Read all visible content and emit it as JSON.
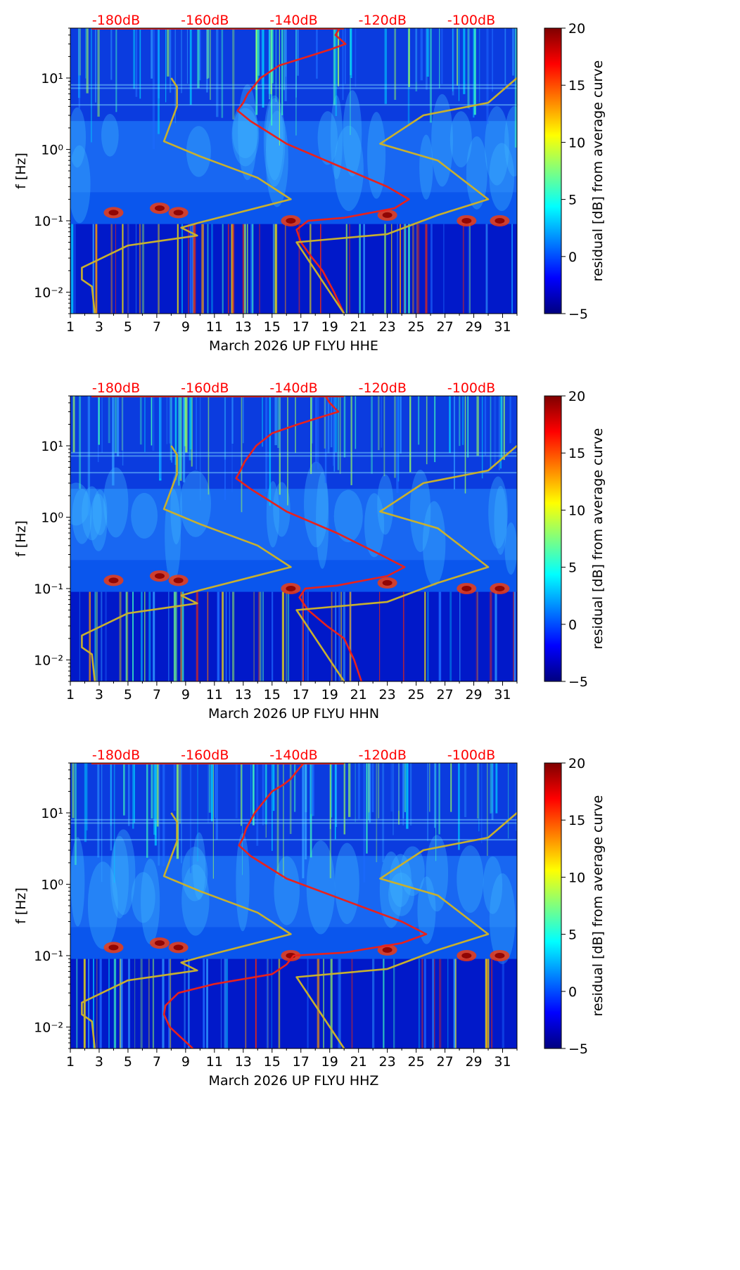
{
  "colors": {
    "red_curve": "#e8211c",
    "model_curve": "#c8b02e",
    "db_text": "#ff0000",
    "axis": "#000000",
    "jet_stops": [
      "#00007f",
      "#0000ff",
      "#007fff",
      "#00ffff",
      "#7fff7f",
      "#ffff00",
      "#ff7f00",
      "#ff0000",
      "#7f0000"
    ]
  },
  "chart_data": [
    {
      "type": "heatmap",
      "title": "",
      "xlabel": "March 2026 UP FLYU  HHE",
      "ylabel": "f [Hz]",
      "xlim": [
        1,
        32
      ],
      "ylim": [
        0.005,
        50
      ],
      "yscale": "log",
      "x_ticks": [
        "1",
        "3",
        "5",
        "7",
        "9",
        "11",
        "13",
        "15",
        "17",
        "19",
        "21",
        "23",
        "25",
        "27",
        "29",
        "31"
      ],
      "y_ticks": [
        "10⁻²",
        "10⁻¹",
        "10⁰",
        "10¹"
      ],
      "db_scale_labels": [
        "-180dB",
        "-160dB",
        "-140dB",
        "-120dB",
        "-100dB"
      ],
      "db_scale_values": [
        -180,
        -160,
        -140,
        -120,
        -100
      ],
      "colorbar": {
        "label": "residual [dB] from average curve",
        "range": [
          -5,
          20
        ],
        "ticks": [
          "−5",
          "0",
          "5",
          "10",
          "15",
          "20"
        ]
      },
      "series": [
        {
          "name": "average PSD (red)",
          "points": [
            [
              19.7,
              50
            ],
            [
              19.4,
              40
            ],
            [
              20.1,
              30
            ],
            [
              19.0,
              25
            ],
            [
              17.5,
              20
            ],
            [
              15.5,
              15
            ],
            [
              14.2,
              10
            ],
            [
              13.3,
              6
            ],
            [
              13.0,
              4.5
            ],
            [
              12.6,
              3.5
            ],
            [
              13.5,
              2.5
            ],
            [
              16.0,
              1.2
            ],
            [
              19.5,
              0.6
            ],
            [
              23.0,
              0.3
            ],
            [
              24.5,
              0.2
            ],
            [
              23.5,
              0.15
            ],
            [
              20.0,
              0.11
            ],
            [
              17.5,
              0.1
            ],
            [
              16.7,
              0.075
            ],
            [
              17.0,
              0.05
            ],
            [
              17.8,
              0.03
            ],
            [
              18.5,
              0.02
            ],
            [
              19.3,
              0.01
            ],
            [
              20.0,
              0.005
            ]
          ]
        },
        {
          "name": "low noise model",
          "points": [
            [
              8.0,
              10
            ],
            [
              8.4,
              7.5
            ],
            [
              8.4,
              4
            ],
            [
              7.5,
              1.3
            ],
            [
              10.0,
              0.8
            ],
            [
              14.0,
              0.4
            ],
            [
              16.3,
              0.2
            ],
            [
              10.0,
              0.095
            ],
            [
              8.7,
              0.08
            ],
            [
              9.8,
              0.062
            ],
            [
              5.0,
              0.045
            ],
            [
              1.8,
              0.022
            ],
            [
              1.8,
              0.015
            ],
            [
              2.5,
              0.012
            ],
            [
              2.7,
              0.005
            ]
          ]
        },
        {
          "name": "high noise model",
          "points": [
            [
              32.0,
              10
            ],
            [
              30.0,
              4.5
            ],
            [
              25.5,
              3.0
            ],
            [
              22.5,
              1.2
            ],
            [
              26.5,
              0.7
            ],
            [
              30.0,
              0.2
            ],
            [
              26.5,
              0.12
            ],
            [
              23.0,
              0.065
            ],
            [
              16.7,
              0.05
            ],
            [
              20.0,
              0.005
            ]
          ]
        }
      ]
    },
    {
      "type": "heatmap",
      "title": "",
      "xlabel": "March 2026 UP FLYU  HHN",
      "ylabel": "f [Hz]",
      "xlim": [
        1,
        32
      ],
      "ylim": [
        0.005,
        50
      ],
      "yscale": "log",
      "x_ticks": [
        "1",
        "3",
        "5",
        "7",
        "9",
        "11",
        "13",
        "15",
        "17",
        "19",
        "21",
        "23",
        "25",
        "27",
        "29",
        "31"
      ],
      "y_ticks": [
        "10⁻²",
        "10⁻¹",
        "10⁰",
        "10¹"
      ],
      "db_scale_labels": [
        "-180dB",
        "-160dB",
        "-140dB",
        "-120dB",
        "-100dB"
      ],
      "db_scale_values": [
        -180,
        -160,
        -140,
        -120,
        -100
      ],
      "colorbar": {
        "label": "residual [dB] from average curve",
        "range": [
          -5,
          20
        ],
        "ticks": [
          "−5",
          "0",
          "5",
          "10",
          "15",
          "20"
        ]
      },
      "series": [
        {
          "name": "average PSD (red)",
          "points": [
            [
              18.7,
              50
            ],
            [
              19.0,
              40
            ],
            [
              19.6,
              30
            ],
            [
              18.3,
              25
            ],
            [
              16.8,
              20
            ],
            [
              15.0,
              15
            ],
            [
              13.9,
              10
            ],
            [
              13.1,
              6
            ],
            [
              12.8,
              4.5
            ],
            [
              12.5,
              3.5
            ],
            [
              13.5,
              2.5
            ],
            [
              16.0,
              1.2
            ],
            [
              19.5,
              0.6
            ],
            [
              22.5,
              0.3
            ],
            [
              24.2,
              0.2
            ],
            [
              23.0,
              0.15
            ],
            [
              19.5,
              0.11
            ],
            [
              17.3,
              0.1
            ],
            [
              16.9,
              0.075
            ],
            [
              17.5,
              0.05
            ],
            [
              18.8,
              0.03
            ],
            [
              20.0,
              0.02
            ],
            [
              20.7,
              0.01
            ],
            [
              21.2,
              0.005
            ]
          ]
        },
        {
          "name": "low noise model",
          "points": [
            [
              8.0,
              10
            ],
            [
              8.4,
              7.5
            ],
            [
              8.4,
              4
            ],
            [
              7.5,
              1.3
            ],
            [
              10.0,
              0.8
            ],
            [
              14.0,
              0.4
            ],
            [
              16.3,
              0.2
            ],
            [
              10.0,
              0.095
            ],
            [
              8.7,
              0.08
            ],
            [
              9.8,
              0.062
            ],
            [
              5.0,
              0.045
            ],
            [
              1.8,
              0.022
            ],
            [
              1.8,
              0.015
            ],
            [
              2.5,
              0.012
            ],
            [
              2.7,
              0.005
            ]
          ]
        },
        {
          "name": "high noise model",
          "points": [
            [
              32.0,
              10
            ],
            [
              30.0,
              4.5
            ],
            [
              25.5,
              3.0
            ],
            [
              22.5,
              1.2
            ],
            [
              26.5,
              0.7
            ],
            [
              30.0,
              0.2
            ],
            [
              26.5,
              0.12
            ],
            [
              23.0,
              0.065
            ],
            [
              16.7,
              0.05
            ],
            [
              20.0,
              0.005
            ]
          ]
        }
      ]
    },
    {
      "type": "heatmap",
      "title": "",
      "xlabel": "March 2026 UP FLYU  HHZ",
      "ylabel": "f [Hz]",
      "xlim": [
        1,
        32
      ],
      "ylim": [
        0.005,
        50
      ],
      "yscale": "log",
      "x_ticks": [
        "1",
        "3",
        "5",
        "7",
        "9",
        "11",
        "13",
        "15",
        "17",
        "19",
        "21",
        "23",
        "25",
        "27",
        "29",
        "31"
      ],
      "y_ticks": [
        "10⁻²",
        "10⁻¹",
        "10⁰",
        "10¹"
      ],
      "db_scale_labels": [
        "-180dB",
        "-160dB",
        "-140dB",
        "-120dB",
        "-100dB"
      ],
      "db_scale_values": [
        -180,
        -160,
        -140,
        -120,
        -100
      ],
      "colorbar": {
        "label": "residual [dB] from average curve",
        "range": [
          -5,
          20
        ],
        "ticks": [
          "−5",
          "0",
          "5",
          "10",
          "15",
          "20"
        ]
      },
      "series": [
        {
          "name": "average PSD (red)",
          "points": [
            [
              17.2,
              50
            ],
            [
              16.8,
              40
            ],
            [
              16.3,
              30
            ],
            [
              15.8,
              25
            ],
            [
              15.0,
              20
            ],
            [
              14.5,
              15
            ],
            [
              13.8,
              10
            ],
            [
              13.2,
              6
            ],
            [
              13.0,
              4.5
            ],
            [
              12.7,
              3.5
            ],
            [
              13.5,
              2.5
            ],
            [
              16.0,
              1.2
            ],
            [
              20.0,
              0.6
            ],
            [
              24.0,
              0.3
            ],
            [
              25.7,
              0.2
            ],
            [
              24.0,
              0.15
            ],
            [
              20.0,
              0.11
            ],
            [
              16.5,
              0.1
            ],
            [
              16.0,
              0.075
            ],
            [
              15.0,
              0.055
            ],
            [
              11.0,
              0.04
            ],
            [
              8.5,
              0.03
            ],
            [
              7.6,
              0.02
            ],
            [
              7.5,
              0.015
            ],
            [
              7.9,
              0.01
            ],
            [
              9.5,
              0.005
            ]
          ]
        },
        {
          "name": "low noise model",
          "points": [
            [
              8.0,
              10
            ],
            [
              8.4,
              7.5
            ],
            [
              8.4,
              4
            ],
            [
              7.5,
              1.3
            ],
            [
              10.0,
              0.8
            ],
            [
              14.0,
              0.4
            ],
            [
              16.3,
              0.2
            ],
            [
              10.0,
              0.095
            ],
            [
              8.7,
              0.08
            ],
            [
              9.8,
              0.062
            ],
            [
              5.0,
              0.045
            ],
            [
              1.8,
              0.022
            ],
            [
              1.8,
              0.015
            ],
            [
              2.5,
              0.012
            ],
            [
              2.7,
              0.005
            ]
          ]
        },
        {
          "name": "high noise model",
          "points": [
            [
              32.0,
              10
            ],
            [
              30.0,
              4.5
            ],
            [
              25.5,
              3.0
            ],
            [
              22.5,
              1.2
            ],
            [
              26.5,
              0.7
            ],
            [
              30.0,
              0.2
            ],
            [
              26.5,
              0.12
            ],
            [
              23.0,
              0.065
            ],
            [
              16.7,
              0.05
            ],
            [
              20.0,
              0.005
            ]
          ]
        }
      ]
    }
  ]
}
